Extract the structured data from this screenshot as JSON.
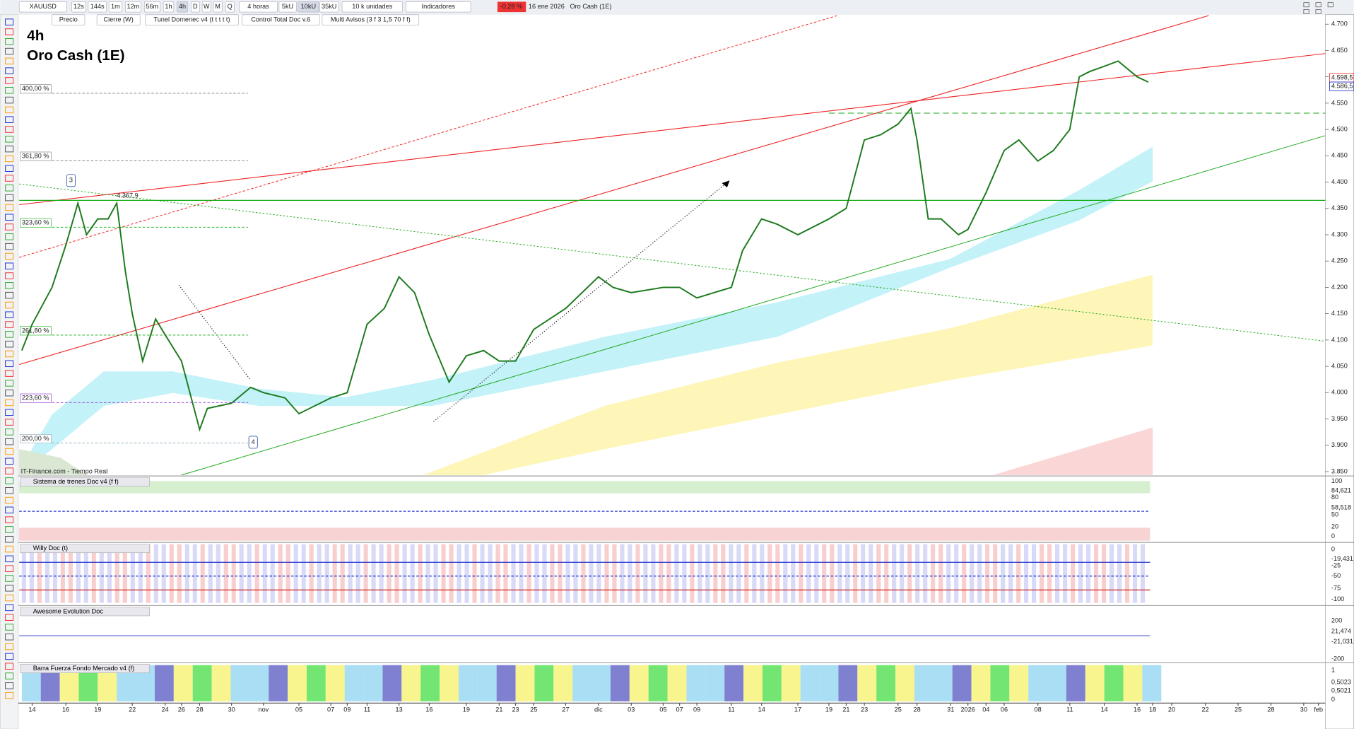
{
  "toolbar": {
    "symbol": "XAUUSD",
    "intervals": [
      "12s",
      "144s",
      "1m",
      "12m",
      "56m",
      "1h",
      "4h",
      "D",
      "W",
      "M",
      "Q"
    ],
    "period": "4 horas",
    "units": [
      "5kU",
      "10kU",
      "35kU"
    ],
    "unit_select": "10 k unidades",
    "indicators": "Indicadores",
    "change": "-0,28 %",
    "date": "16 ene 2026",
    "instrument": "Oro Cash (1E)",
    "overlays": [
      "Precio",
      "Cierre (W)",
      "Tunel Domenec v4 (t t t t t)",
      "Control Total Doc v.6",
      "Multi Avisos (3 f 3 1,5 70 f f)"
    ]
  },
  "chart": {
    "timeframe": "4h",
    "title": "Oro Cash (1E)",
    "source": "IT-Finance.com - Tiempo Real",
    "price_axis": [
      {
        "value": 4700,
        "label": "4.700"
      },
      {
        "value": 4650,
        "label": "4.650"
      },
      {
        "value": 4600,
        "label": "4.600"
      },
      {
        "value": 4550,
        "label": "4.550"
      },
      {
        "value": 4500,
        "label": "4.500"
      },
      {
        "value": 4450,
        "label": "4.450"
      },
      {
        "value": 4400,
        "label": "4.400"
      },
      {
        "value": 4350,
        "label": "4.350"
      },
      {
        "value": 4300,
        "label": "4.300"
      },
      {
        "value": 4250,
        "label": "4.250"
      },
      {
        "value": 4200,
        "label": "4.200"
      },
      {
        "value": 4150,
        "label": "4.150"
      },
      {
        "value": 4100,
        "label": "4.100"
      },
      {
        "value": 4050,
        "label": "4.050"
      },
      {
        "value": 4000,
        "label": "4.000"
      },
      {
        "value": 3950,
        "label": "3.950"
      },
      {
        "value": 3900,
        "label": "3.900"
      },
      {
        "value": 3850,
        "label": "3.850"
      }
    ],
    "price_tags": [
      "4.598,5",
      "4.586,5"
    ],
    "levels": [
      "400,00 %",
      "361,80 %",
      "323,60 %",
      "261,80 %",
      "223,60 %",
      "200,00 %"
    ],
    "level_note": "4.367,9",
    "wave_marks": [
      "3",
      "4"
    ],
    "dates": [
      "14",
      "16",
      "19",
      "22",
      "24",
      "26",
      "28",
      "30",
      "nov",
      "05",
      "07",
      "09",
      "11",
      "13",
      "16",
      "19",
      "21",
      "23",
      "25",
      "27",
      "dic",
      "03",
      "05",
      "07",
      "09",
      "11",
      "14",
      "17",
      "19",
      "21",
      "23",
      "25",
      "28",
      "31",
      "2026",
      "04",
      "06",
      "08",
      "11",
      "14",
      "16",
      "18",
      "20",
      "22",
      "25",
      "28",
      "30",
      "feb"
    ],
    "price_line": [
      4080,
      4130,
      4200,
      4280,
      4360,
      4300,
      4330,
      4330,
      4360,
      4230,
      4150,
      4060,
      4140,
      4110,
      4060,
      3930,
      3970,
      3980,
      4010,
      4000,
      3990,
      3960,
      3990,
      4000,
      4130,
      4160,
      4220,
      4190,
      4110,
      4020,
      4070,
      4080,
      4060,
      4060,
      4120,
      4160,
      4220,
      4200,
      4190,
      4200,
      4200,
      4180,
      4200,
      4270,
      4330,
      4320,
      4300,
      4330,
      4350,
      4480,
      4490,
      4510,
      4540,
      4480,
      4330,
      4330,
      4300,
      4310,
      4380,
      4460,
      4480,
      4440,
      4460,
      4500,
      4600,
      4610,
      4620,
      4630,
      4600,
      4590
    ]
  },
  "panels": [
    {
      "title": "Sistema de trenes Doc v4 (f f)",
      "axis": [
        "100",
        "84,621",
        "80",
        "58,518",
        "50",
        "20",
        "0"
      ]
    },
    {
      "title": "Willy Doc (t)",
      "axis": [
        "0",
        "-19,431",
        "-25",
        "-50",
        "-75",
        "-100"
      ]
    },
    {
      "title": "Awesome Evolution Doc",
      "axis": [
        "200",
        "21,474",
        "-21,031",
        "-200"
      ]
    },
    {
      "title": "Barra Fuerza Fondo Mercado v4 (f)",
      "axis": [
        "1",
        "0,5023",
        "0,5021",
        "0"
      ]
    }
  ]
}
